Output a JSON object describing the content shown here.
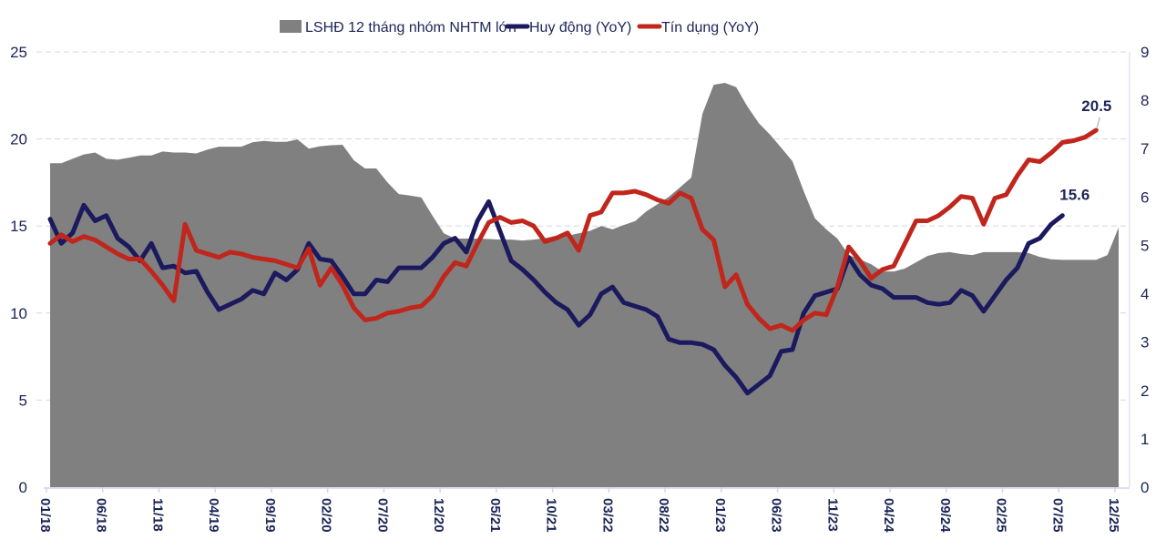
{
  "chart_data": {
    "type": "line",
    "title": "",
    "xlabel": "",
    "ylabel": "",
    "y_left": {
      "min": 0,
      "max": 25,
      "ticks": [
        "0",
        "5",
        "10",
        "15",
        "20",
        "25"
      ]
    },
    "y_right": {
      "min": 0,
      "max": 9,
      "ticks": [
        "0",
        "1",
        "2",
        "3",
        "4",
        "5",
        "6",
        "7",
        "8",
        "9"
      ]
    },
    "grid": "horizontal dashed at left-axis ticks",
    "legend_position": "top-center",
    "x_start": "01/18",
    "x_end": "12/25",
    "x_tick_labels": [
      "01/18",
      "06/18",
      "11/18",
      "04/19",
      "09/19",
      "02/20",
      "07/20",
      "12/20",
      "05/21",
      "10/21",
      "03/22",
      "08/22",
      "01/23",
      "06/23",
      "11/23",
      "04/24",
      "09/24",
      "02/25",
      "07/25",
      "12/25"
    ],
    "series": [
      {
        "name": "LSHĐ 12 tháng nhóm NHTM lớn",
        "kind": "area",
        "axis": "right",
        "color": "#808080",
        "values": [
          6.7,
          6.7,
          6.79,
          6.88,
          6.92,
          6.79,
          6.77,
          6.81,
          6.86,
          6.86,
          6.94,
          6.92,
          6.92,
          6.9,
          6.98,
          7.04,
          7.04,
          7.04,
          7.13,
          7.16,
          7.14,
          7.14,
          7.19,
          7.0,
          7.05,
          7.07,
          7.08,
          6.76,
          6.59,
          6.59,
          6.3,
          6.06,
          6.03,
          5.99,
          5.61,
          5.25,
          5.14,
          5.14,
          5.14,
          5.13,
          5.12,
          5.12,
          5.1,
          5.12,
          5.15,
          5.2,
          5.2,
          5.25,
          5.3,
          5.4,
          5.33,
          5.42,
          5.5,
          5.7,
          5.85,
          6.0,
          6.2,
          6.4,
          7.72,
          8.32,
          8.36,
          8.27,
          7.87,
          7.53,
          7.29,
          7.02,
          6.74,
          6.12,
          5.56,
          5.33,
          5.14,
          4.8,
          4.71,
          4.61,
          4.46,
          4.46,
          4.52,
          4.65,
          4.78,
          4.84,
          4.86,
          4.82,
          4.8,
          4.86,
          4.86,
          4.86,
          4.86,
          4.84,
          4.76,
          4.71,
          4.7,
          4.7,
          4.7,
          4.7,
          4.8,
          5.37
        ]
      },
      {
        "name": "Huy động (YoY)",
        "kind": "line",
        "axis": "left",
        "color": "#1c1a5e",
        "end_label": "15.6",
        "values": [
          15.4,
          14.0,
          14.6,
          16.2,
          15.3,
          15.6,
          14.3,
          13.8,
          13.0,
          14.0,
          12.6,
          12.7,
          12.3,
          12.4,
          11.2,
          10.2,
          10.5,
          10.8,
          11.3,
          11.1,
          12.3,
          11.9,
          12.5,
          14.0,
          13.1,
          13.0,
          12.1,
          11.1,
          11.1,
          11.9,
          11.8,
          12.6,
          12.6,
          12.6,
          13.2,
          14.0,
          14.3,
          13.5,
          15.3,
          16.4,
          14.7,
          13.0,
          12.5,
          11.9,
          11.2,
          10.6,
          10.2,
          9.3,
          9.9,
          11.1,
          11.5,
          10.6,
          10.4,
          10.2,
          9.8,
          8.5,
          8.3,
          8.3,
          8.2,
          7.9,
          7.0,
          6.3,
          5.4,
          5.9,
          6.4,
          7.8,
          7.9,
          10.0,
          11.0,
          11.2,
          11.4,
          13.2,
          12.2,
          11.6,
          11.4,
          10.9,
          10.9,
          10.9,
          10.6,
          10.5,
          10.6,
          11.3,
          11.0,
          10.1,
          11.0,
          11.9,
          12.6,
          14.0,
          14.3,
          15.1,
          15.6
        ]
      },
      {
        "name": "Tín dụng (YoY)",
        "kind": "line",
        "axis": "left",
        "color": "#c0261c",
        "end_label": "20.5",
        "values": [
          14.0,
          14.5,
          14.1,
          14.4,
          14.2,
          13.8,
          13.4,
          13.1,
          13.1,
          12.4,
          11.6,
          10.7,
          15.1,
          13.6,
          13.4,
          13.2,
          13.5,
          13.4,
          13.2,
          13.1,
          13.0,
          12.8,
          12.6,
          13.7,
          11.6,
          12.6,
          11.6,
          10.3,
          9.6,
          9.7,
          10.0,
          10.1,
          10.3,
          10.4,
          11.0,
          12.1,
          12.9,
          12.7,
          14.0,
          15.2,
          15.5,
          15.2,
          15.3,
          15.0,
          14.1,
          14.3,
          14.6,
          13.6,
          15.6,
          15.8,
          16.9,
          16.9,
          17.0,
          16.8,
          16.5,
          16.3,
          16.9,
          16.6,
          14.8,
          14.2,
          11.5,
          12.2,
          10.5,
          9.7,
          9.1,
          9.3,
          9.0,
          9.6,
          10.0,
          9.9,
          11.5,
          13.8,
          13.0,
          12.0,
          12.5,
          12.7,
          14.0,
          15.3,
          15.3,
          15.6,
          16.1,
          16.7,
          16.6,
          15.1,
          16.6,
          16.8,
          17.9,
          18.8,
          18.7,
          19.2,
          19.8,
          19.9,
          20.1,
          20.5
        ]
      }
    ]
  }
}
